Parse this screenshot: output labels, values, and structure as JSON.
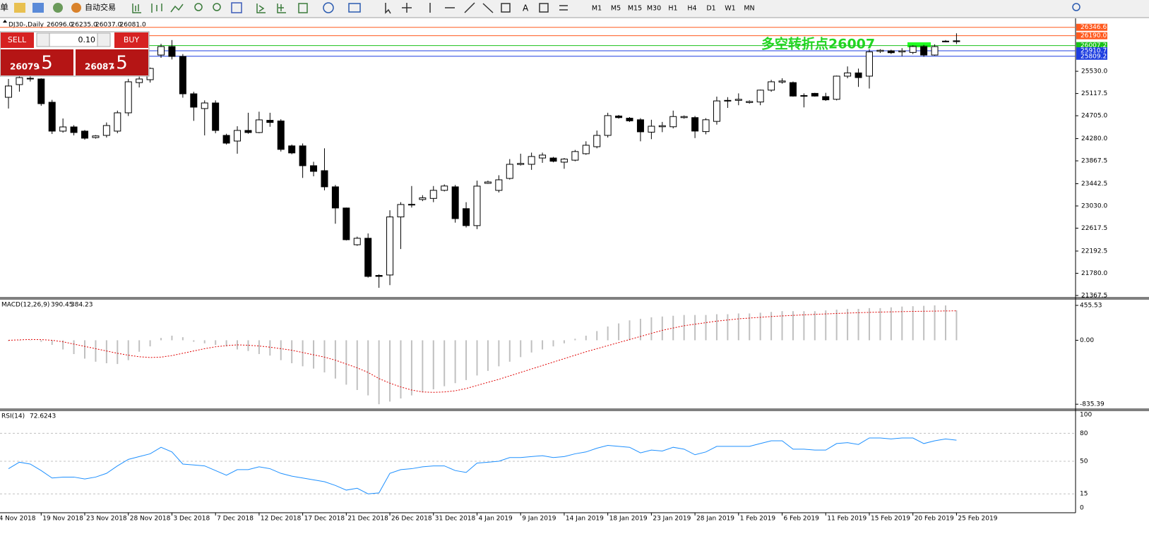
{
  "toolbar": {
    "menu_char": "单",
    "auto_trading": "自动交易",
    "timeframes": [
      "M1",
      "M5",
      "M15",
      "M30",
      "H1",
      "H4",
      "D1",
      "W1",
      "MN"
    ],
    "text_tool": "A"
  },
  "chart_header": {
    "symbol": "DJ30-,Daily",
    "ohlc": [
      "26096.0",
      "26235.0",
      "26037.0",
      "26081.0"
    ]
  },
  "trade_panel": {
    "sell": "SELL",
    "lot": "0.10",
    "buy": "BUY",
    "sell_price": "26079",
    "sell_fraction": ".5",
    "buy_price": "26087",
    "buy_fraction": ".5"
  },
  "annotation": "多空转折点26007",
  "price": {
    "ylim": [
      21341,
      26500
    ],
    "yticks": [
      {
        "value": 25530,
        "label": "25530.0"
      },
      {
        "value": 25117.5,
        "label": "25117.5"
      },
      {
        "value": 24705,
        "label": "24705.0"
      },
      {
        "value": 24280,
        "label": "24280.0"
      },
      {
        "value": 23867.5,
        "label": "23867.5"
      },
      {
        "value": 23442.5,
        "label": "23442.5"
      },
      {
        "value": 23030,
        "label": "23030.0"
      },
      {
        "value": 22617.5,
        "label": "22617.5"
      },
      {
        "value": 22192.5,
        "label": "22192.5"
      },
      {
        "value": 21780,
        "label": "21780.0"
      },
      {
        "value": 21367.5,
        "label": "21367.5"
      }
    ],
    "levels": [
      {
        "value": 26346.6,
        "label": "26346.6",
        "color": "#ff5a1f"
      },
      {
        "value": 26190,
        "label": "26190.0",
        "color": "#ff5a1f"
      },
      {
        "value": 26007.2,
        "label": "26007.2",
        "color": "#19c119"
      },
      {
        "value": 25910.7,
        "label": "25910.7",
        "color": "#1f3fe0"
      },
      {
        "value": 25809.2,
        "label": "25809.2",
        "color": "#1f3fe0"
      }
    ],
    "candles": {
      "open": [
        25047,
        25283,
        25400,
        25387,
        24955,
        24419,
        24497,
        24419,
        24300,
        24340,
        24419,
        24759,
        25320,
        25374,
        25832,
        25989,
        25806,
        25112,
        24838,
        24942,
        24340,
        24235,
        24432,
        24393,
        24620,
        24608,
        24145,
        24145,
        23777,
        23685,
        23385,
        22992,
        22310,
        22430,
        21740,
        21748,
        22826,
        23050,
        23150,
        23170,
        23320,
        23385,
        22980,
        22665,
        23450,
        23319,
        23541,
        23800,
        23803,
        23920,
        23920,
        23843,
        23880,
        24000,
        24130,
        24340,
        24700,
        24660,
        24630,
        24400,
        24500,
        24500,
        24670,
        24670,
        24410,
        24600,
        24980,
        24990,
        24950,
        24960,
        25180,
        25330,
        25320,
        25070,
        25120,
        25060,
        25010,
        25440,
        25500,
        25440,
        25900,
        25910,
        25890,
        25880,
        25990,
        25832,
        26080,
        26096
      ],
      "high": [
        25387,
        25450,
        25450,
        25400,
        25000,
        24654,
        24530,
        24440,
        24345,
        24580,
        24800,
        25390,
        25430,
        25600,
        26040,
        26110,
        25850,
        25150,
        24990,
        24990,
        24370,
        24510,
        24760,
        24780,
        24760,
        24640,
        24170,
        24190,
        23850,
        24100,
        23420,
        23000,
        22460,
        22520,
        21760,
        22950,
        23100,
        23400,
        23230,
        23400,
        23430,
        23420,
        23100,
        23500,
        23500,
        23600,
        23900,
        24000,
        24020,
        24020,
        23940,
        23920,
        24070,
        24230,
        24430,
        24760,
        24720,
        24680,
        24660,
        24630,
        24590,
        24800,
        24710,
        24700,
        24660,
        25060,
        25050,
        25120,
        24990,
        25190,
        25370,
        25400,
        25340,
        25120,
        25130,
        25130,
        25450,
        25620,
        25580,
        25940,
        25940,
        25930,
        25960,
        26010,
        26020,
        26030,
        26110,
        26235
      ],
      "low": [
        24838,
        25152,
        25340,
        24890,
        24366,
        24390,
        24340,
        24260,
        24280,
        24300,
        24380,
        24700,
        25230,
        25320,
        25780,
        25750,
        25040,
        24610,
        24340,
        24380,
        24170,
        24000,
        24370,
        24380,
        24500,
        24040,
        23990,
        23550,
        23580,
        23320,
        22700,
        22390,
        22290,
        21700,
        21510,
        21560,
        22230,
        23000,
        23120,
        23100,
        23300,
        22720,
        22630,
        22600,
        23440,
        23280,
        23520,
        23780,
        23700,
        23830,
        23840,
        23720,
        23860,
        23980,
        24100,
        24300,
        24650,
        24590,
        24230,
        24270,
        24400,
        24470,
        24650,
        24290,
        24360,
        24540,
        24850,
        24900,
        24930,
        24900,
        25150,
        25300,
        25060,
        24860,
        25060,
        24980,
        24990,
        25400,
        25240,
        25210,
        25870,
        25850,
        25810,
        25850,
        25800,
        25820,
        26070,
        26037
      ],
      "close": [
        25257,
        25413,
        25390,
        24929,
        24419,
        24497,
        24393,
        24288,
        24330,
        24523,
        24759,
        25335,
        25387,
        25583,
        25989,
        25806,
        25112,
        24864,
        24942,
        24432,
        24196,
        24432,
        24393,
        24628,
        24580,
        24080,
        24014,
        23777,
        23672,
        23385,
        22992,
        22403,
        22430,
        21722,
        21722,
        22826,
        23057,
        23060,
        23180,
        23320,
        23400,
        22795,
        22665,
        23398,
        23475,
        23515,
        23803,
        23820,
        23948,
        23974,
        23860,
        23900,
        24040,
        24157,
        24340,
        24707,
        24670,
        24610,
        24406,
        24510,
        24520,
        24690,
        24690,
        24420,
        24630,
        24980,
        24990,
        25010,
        24970,
        25180,
        25335,
        25350,
        25070,
        25080,
        25070,
        25000,
        25440,
        25500,
        25413,
        25890,
        25920,
        25875,
        25910,
        25990,
        25832,
        25989,
        26090,
        26081
      ]
    }
  },
  "macd": {
    "title": "MACD(12,26,9)",
    "ylim": [
      -880,
      520
    ],
    "yticks": [
      {
        "value": 455.53,
        "label": "455.53"
      },
      {
        "value": 0,
        "label": "0.00"
      },
      {
        "value": -835.39,
        "label": "-835.39"
      }
    ],
    "histogram": [
      -10,
      -5,
      -5,
      -20,
      -60,
      -120,
      -180,
      -240,
      -280,
      -300,
      -310,
      -260,
      -150,
      -80,
      30,
      60,
      40,
      -20,
      -40,
      -60,
      -80,
      -120,
      -140,
      -180,
      -200,
      -260,
      -300,
      -340,
      -370,
      -420,
      -500,
      -580,
      -650,
      -720,
      -835,
      -800,
      -760,
      -720,
      -680,
      -640,
      -600,
      -560,
      -520,
      -460,
      -400,
      -340,
      -280,
      -220,
      -160,
      -120,
      -80,
      -40,
      20,
      60,
      120,
      180,
      220,
      260,
      280,
      300,
      310,
      320,
      330,
      330,
      330,
      340,
      340,
      350,
      350,
      360,
      370,
      380,
      380,
      380,
      380,
      390,
      400,
      410,
      410,
      420,
      420,
      430,
      440,
      445,
      450,
      455.53,
      455,
      390.45
    ],
    "signal": [
      0,
      5,
      10,
      8,
      0,
      -20,
      -50,
      -80,
      -110,
      -140,
      -170,
      -195,
      -215,
      -225,
      -220,
      -200,
      -170,
      -140,
      -110,
      -85,
      -70,
      -60,
      -65,
      -75,
      -90,
      -110,
      -130,
      -160,
      -190,
      -220,
      -260,
      -310,
      -360,
      -420,
      -500,
      -560,
      -610,
      -650,
      -675,
      -680,
      -675,
      -660,
      -630,
      -590,
      -550,
      -510,
      -465,
      -420,
      -375,
      -330,
      -285,
      -240,
      -195,
      -150,
      -110,
      -70,
      -30,
      10,
      50,
      90,
      130,
      160,
      190,
      210,
      230,
      250,
      265,
      280,
      290,
      300,
      310,
      318,
      325,
      332,
      338,
      344,
      350,
      355,
      360,
      364,
      368,
      371,
      374,
      377,
      379,
      381,
      383,
      384.23
    ]
  },
  "rsi": {
    "title": "RSI(14)",
    "ylim": [
      0,
      100
    ],
    "yticks": [
      100,
      80,
      50,
      15,
      0
    ],
    "values": [
      42,
      49,
      47,
      40,
      32,
      33,
      33,
      31,
      33,
      37,
      45,
      52,
      55,
      58,
      65,
      60,
      47,
      46,
      45,
      40,
      35,
      41,
      41,
      44,
      42,
      37,
      34,
      32,
      30,
      28,
      24,
      19,
      21,
      15,
      16,
      37,
      41,
      42,
      44,
      45,
      45,
      40,
      38,
      48,
      49,
      50,
      54,
      54,
      55,
      56,
      54,
      55,
      58,
      60,
      64,
      67,
      66,
      65,
      59,
      62,
      61,
      65,
      63,
      57,
      60,
      66,
      66,
      66,
      66,
      69,
      72,
      72,
      63,
      63,
      62,
      62,
      69,
      70,
      68,
      75,
      75,
      74,
      75,
      75,
      69,
      72,
      74,
      72.6243
    ]
  },
  "dates": [
    "4 Nov 2018",
    "19 Nov 2018",
    "23 Nov 2018",
    "28 Nov 2018",
    "3 Dec 2018",
    "7 Dec 2018",
    "12 Dec 2018",
    "17 Dec 2018",
    "21 Dec 2018",
    "26 Dec 2018",
    "31 Dec 2018",
    "4 Jan 2019",
    "9 Jan 2019",
    "14 Jan 2019",
    "18 Jan 2019",
    "23 Jan 2019",
    "28 Jan 2019",
    "1 Feb 2019",
    "6 Feb 2019",
    "11 Feb 2019",
    "15 Feb 2019",
    "20 Feb 2019",
    "25 Feb 2019"
  ]
}
